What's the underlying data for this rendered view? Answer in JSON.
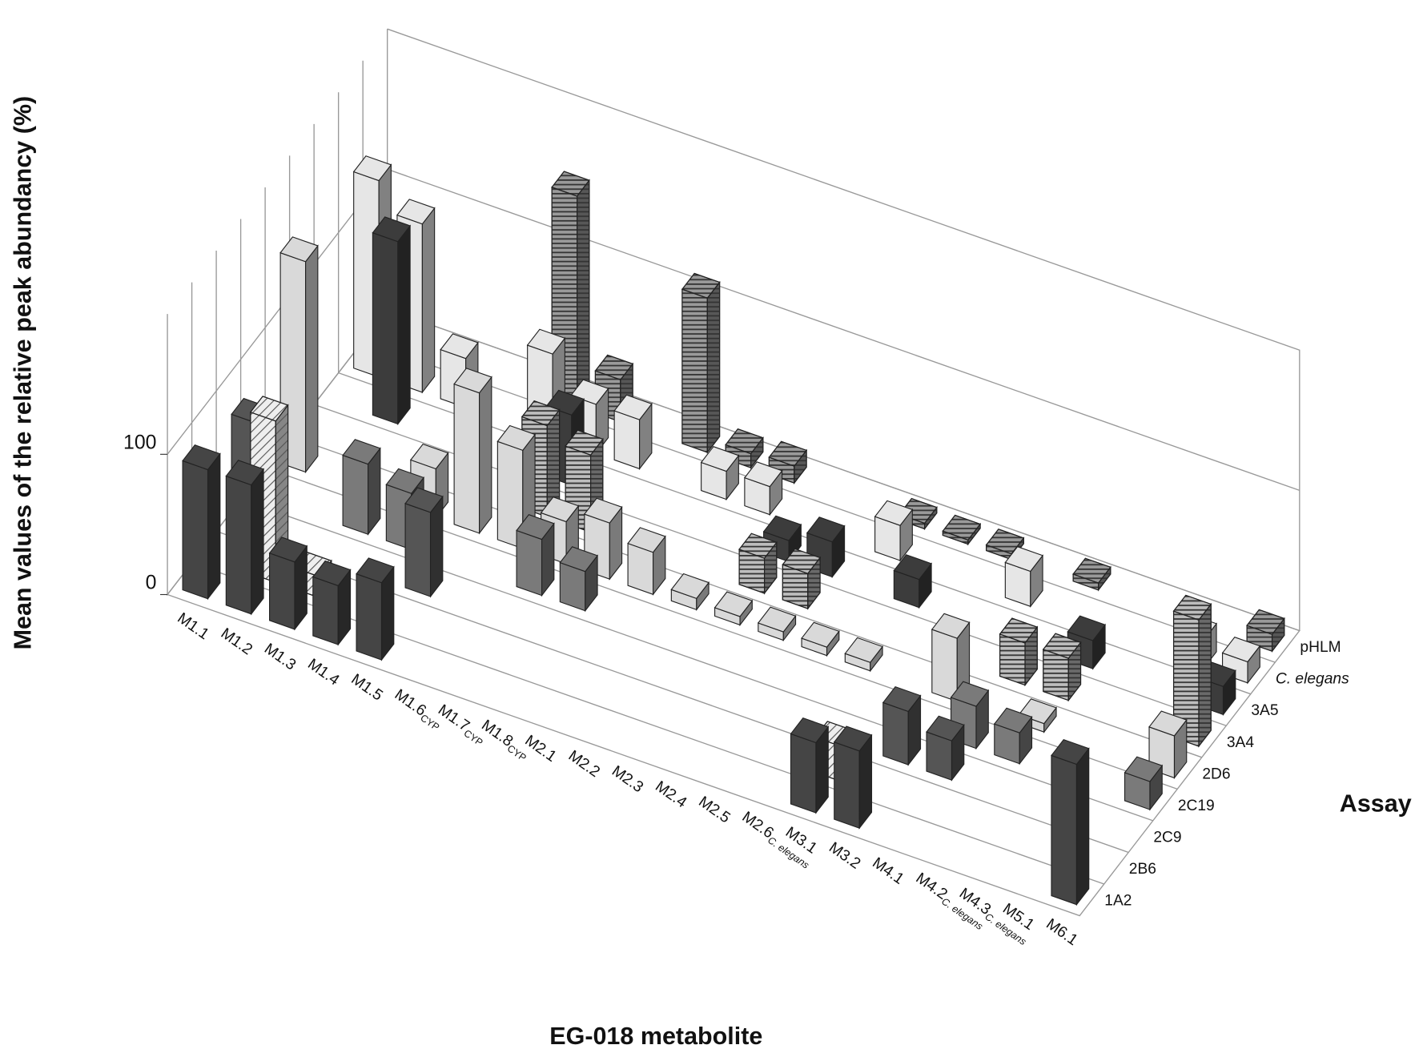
{
  "chart_data": {
    "type": "bar3d",
    "y_label": "Mean values of the relative peak abundancy (%)",
    "x_label": "EG-018 metabolite",
    "z_label": "Assay",
    "categories": [
      {
        "name": "M1.1"
      },
      {
        "name": "M1.2"
      },
      {
        "name": "M1.3"
      },
      {
        "name": "M1.4"
      },
      {
        "name": "M1.5"
      },
      {
        "name": "M1.6",
        "sub": "CYP"
      },
      {
        "name": "M1.7",
        "sub": "CYP"
      },
      {
        "name": "M1.8",
        "sub": "CYP"
      },
      {
        "name": "M2.1"
      },
      {
        "name": "M2.2"
      },
      {
        "name": "M2.3"
      },
      {
        "name": "M2.4"
      },
      {
        "name": "M2.5"
      },
      {
        "name": "M2.6",
        "sub": "C. elegans"
      },
      {
        "name": "M3.1"
      },
      {
        "name": "M3.2"
      },
      {
        "name": "M4.1"
      },
      {
        "name": "M4.2",
        "sub": "C. elegans"
      },
      {
        "name": "M4.3",
        "sub": "C. elegans"
      },
      {
        "name": "M5.1"
      },
      {
        "name": "M6.1"
      }
    ],
    "series": [
      {
        "name": "1A2",
        "color": "#454545",
        "pattern": "solid",
        "values": [
          92,
          92,
          48,
          42,
          55,
          null,
          null,
          null,
          null,
          null,
          null,
          null,
          null,
          null,
          50,
          55,
          null,
          null,
          null,
          null,
          100
        ]
      },
      {
        "name": "2B6",
        "color": "#eeeeee",
        "pattern": "diagonal",
        "values": [
          null,
          115,
          15,
          null,
          null,
          null,
          null,
          null,
          null,
          null,
          null,
          null,
          null,
          null,
          25,
          null,
          null,
          null,
          null,
          null,
          null
        ]
      },
      {
        "name": "2C9",
        "color": "#555555",
        "pattern": "solid",
        "values": [
          80,
          null,
          null,
          null,
          60,
          null,
          null,
          null,
          null,
          null,
          null,
          null,
          null,
          null,
          null,
          38,
          28,
          null,
          null,
          null,
          null
        ]
      },
      {
        "name": "2C19",
        "color": "#7a7a7a",
        "pattern": "solid",
        "values": [
          null,
          null,
          50,
          40,
          null,
          null,
          40,
          28,
          null,
          null,
          null,
          null,
          null,
          null,
          null,
          null,
          30,
          22,
          null,
          null,
          20
        ]
      },
      {
        "name": "2D6",
        "color": "#d9d9d9",
        "pattern": "solid",
        "values": [
          150,
          null,
          null,
          35,
          100,
          70,
          30,
          40,
          30,
          8,
          6,
          6,
          6,
          6,
          null,
          45,
          null,
          6,
          null,
          null,
          30
        ]
      },
      {
        "name": "3A4",
        "color": "#bdbdbd",
        "pattern": "horizontal",
        "values": [
          null,
          null,
          null,
          null,
          null,
          65,
          55,
          null,
          null,
          null,
          25,
          25,
          null,
          null,
          null,
          null,
          30,
          30,
          null,
          null,
          90
        ]
      },
      {
        "name": "3A5",
        "color": "#3c3c3c",
        "pattern": "solid",
        "values": [
          null,
          130,
          null,
          null,
          null,
          50,
          null,
          null,
          null,
          null,
          15,
          25,
          null,
          20,
          null,
          null,
          null,
          20,
          null,
          null,
          20
        ]
      },
      {
        "name": "C. elegans",
        "italic": true,
        "color": "#e6e6e6",
        "pattern": "solid",
        "values": [
          140,
          120,
          35,
          null,
          60,
          35,
          35,
          null,
          20,
          20,
          null,
          null,
          25,
          null,
          null,
          25,
          null,
          null,
          null,
          20,
          15
        ]
      },
      {
        "name": "pHLM",
        "color": "#9a9a9a",
        "pattern": "horizontal",
        "values": [
          null,
          null,
          null,
          null,
          150,
          30,
          null,
          110,
          10,
          12,
          null,
          null,
          4,
          3,
          4,
          null,
          5,
          null,
          null,
          null,
          12
        ]
      }
    ],
    "ylim": [
      0,
      200
    ],
    "yticks": [
      0,
      100
    ],
    "grid": true
  }
}
